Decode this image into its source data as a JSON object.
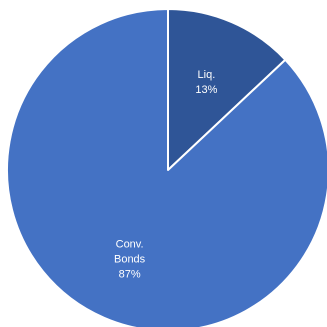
{
  "chart_data": {
    "type": "pie",
    "title": "",
    "slices": [
      {
        "label_lines": [
          "Liq."
        ],
        "value": 13,
        "value_label": "13%",
        "color": "#2f5597"
      },
      {
        "label_lines": [
          "Conv.",
          "Bonds"
        ],
        "value": 87,
        "value_label": "87%",
        "color": "#4472c4"
      }
    ],
    "start_angle_deg": 0,
    "direction": "clockwise",
    "slice_border_color": "#ffffff",
    "label_color": "#ffffff"
  }
}
